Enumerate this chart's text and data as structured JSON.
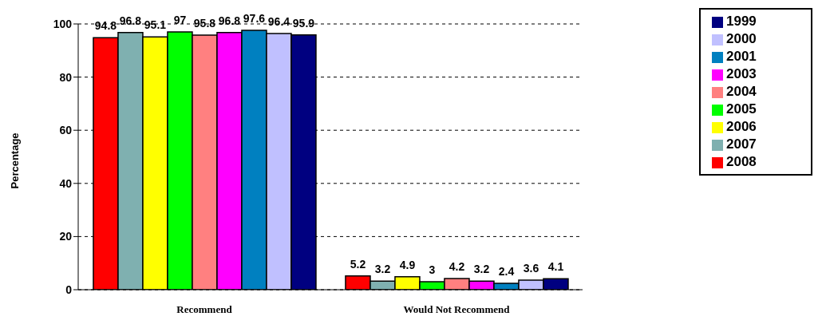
{
  "chart_data": {
    "type": "bar",
    "ylabel": "Percentage",
    "categories": [
      "Recommend",
      "Would Not Recommend"
    ],
    "series": [
      {
        "name": "2008",
        "color": "#ff0000",
        "values": [
          94.8,
          5.2
        ]
      },
      {
        "name": "2007",
        "color": "#7fb0b0",
        "values": [
          96.8,
          3.2
        ]
      },
      {
        "name": "2006",
        "color": "#ffff00",
        "values": [
          95.1,
          4.9
        ]
      },
      {
        "name": "2005",
        "color": "#00ff00",
        "values": [
          97,
          3
        ]
      },
      {
        "name": "2004",
        "color": "#ff8080",
        "values": [
          95.8,
          4.2
        ]
      },
      {
        "name": "2003",
        "color": "#ff00ff",
        "values": [
          96.8,
          3.2
        ]
      },
      {
        "name": "2001",
        "color": "#0080c0",
        "values": [
          97.6,
          2.4
        ]
      },
      {
        "name": "2000",
        "color": "#c0c0ff",
        "values": [
          96.4,
          3.6
        ]
      },
      {
        "name": "1999",
        "color": "#000080",
        "values": [
          95.9,
          4.1
        ]
      }
    ],
    "ylim": [
      0,
      100
    ],
    "yticks": [
      0,
      20,
      40,
      60,
      80,
      100
    ],
    "grid": "y",
    "legend": "top right",
    "data_labels": true
  }
}
